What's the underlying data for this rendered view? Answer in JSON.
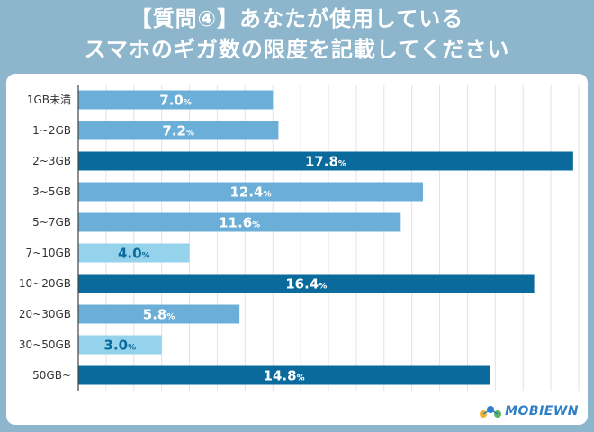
{
  "title_line1": "【質問④】あなたが使用している",
  "title_line2": "スマホのギガ数の限度を記載してください",
  "logo_text": "MOBIEWN",
  "colors": {
    "light": "#6bafd9",
    "dark": "#0a6a9c",
    "pale": "#95d3ec",
    "background": "#8db5cc"
  },
  "chart_data": {
    "type": "bar",
    "orientation": "horizontal",
    "categories": [
      "1GB未満",
      "1~2GB",
      "2~3GB",
      "3~5GB",
      "5~7GB",
      "7~10GB",
      "10~20GB",
      "20~30GB",
      "30~50GB",
      "50GB~"
    ],
    "values": [
      7.0,
      7.2,
      17.8,
      12.4,
      11.6,
      4.0,
      16.4,
      5.8,
      3.0,
      14.8
    ],
    "labels": [
      "7.0",
      "7.2",
      "17.8",
      "12.4",
      "11.6",
      "4.0",
      "16.4",
      "5.8",
      "3.0",
      "14.8"
    ],
    "unit": "%",
    "bar_colors": [
      "light",
      "light",
      "dark",
      "light",
      "light",
      "pale",
      "dark",
      "light",
      "pale",
      "dark"
    ],
    "xlim": [
      0,
      18
    ],
    "grid": true
  }
}
